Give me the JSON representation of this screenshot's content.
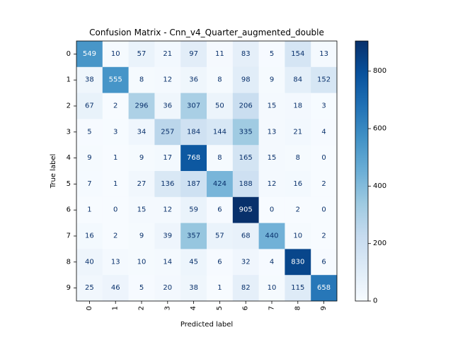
{
  "chart_data": {
    "type": "heatmap",
    "title": "Confusion Matrix - Cnn_v4_Quarter_augmented_double",
    "xlabel": "Predicted label",
    "ylabel": "True label",
    "x_categories": [
      "0",
      "1",
      "2",
      "3",
      "4",
      "5",
      "6",
      "7",
      "8",
      "9"
    ],
    "y_categories": [
      "0",
      "1",
      "2",
      "3",
      "4",
      "5",
      "6",
      "7",
      "8",
      "9"
    ],
    "values": [
      [
        549,
        10,
        57,
        21,
        97,
        11,
        83,
        5,
        154,
        13
      ],
      [
        38,
        555,
        8,
        12,
        36,
        8,
        98,
        9,
        84,
        152
      ],
      [
        67,
        2,
        296,
        36,
        307,
        50,
        206,
        15,
        18,
        3
      ],
      [
        5,
        3,
        34,
        257,
        184,
        144,
        335,
        13,
        21,
        4
      ],
      [
        9,
        1,
        9,
        17,
        768,
        8,
        165,
        15,
        8,
        0
      ],
      [
        7,
        1,
        27,
        136,
        187,
        424,
        188,
        12,
        16,
        2
      ],
      [
        1,
        0,
        15,
        12,
        59,
        6,
        905,
        0,
        2,
        0
      ],
      [
        16,
        2,
        9,
        39,
        357,
        57,
        68,
        440,
        10,
        2
      ],
      [
        40,
        13,
        10,
        14,
        45,
        6,
        32,
        4,
        830,
        6
      ],
      [
        25,
        46,
        5,
        20,
        38,
        1,
        82,
        10,
        115,
        658
      ]
    ],
    "colormap": "Blues",
    "value_range": [
      0,
      905
    ],
    "colorbar": {
      "ticks": [
        0,
        200,
        400,
        600,
        800
      ],
      "tick_labels": [
        "0",
        "200",
        "400",
        "600",
        "800"
      ]
    },
    "x_tick_rotation": "vertical",
    "grid": false
  }
}
